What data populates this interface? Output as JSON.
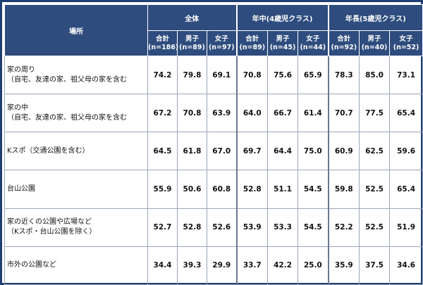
{
  "header": {
    "place_label": "場所",
    "groups": [
      "全体",
      "年中(4歳児クラス)",
      "年長(5歳児クラス)"
    ],
    "subcolumns": [
      {
        "line1": "合計",
        "line2": "(n=186)"
      },
      {
        "line1": "男子",
        "line2": "(n=89)"
      },
      {
        "line1": "女子",
        "line2": "(n=97)"
      },
      {
        "line1": "合計",
        "line2": "(n=89)"
      },
      {
        "line1": "男子",
        "line2": "(n=45)"
      },
      {
        "line1": "女子",
        "line2": "(n=44)"
      },
      {
        "line1": "合計",
        "line2": "(n=92)"
      },
      {
        "line1": "男子",
        "line2": "(n=40)"
      },
      {
        "line1": "女子",
        "line2": "(n=52)"
      }
    ]
  },
  "rows": [
    {
      "label1": "家の周り",
      "label2": "（自宅、友達の家、祖父母の家を含む",
      "values": [
        "74.2",
        "79.8",
        "69.1",
        "70.8",
        "75.6",
        "65.9",
        "78.3",
        "85.0",
        "73.1"
      ]
    },
    {
      "label1": "家の中",
      "label2": "（自宅、友達の家、祖父母の家を含む",
      "values": [
        "67.2",
        "70.8",
        "63.9",
        "64.0",
        "66.7",
        "61.4",
        "70.7",
        "77.5",
        "65.4"
      ]
    },
    {
      "label1": "Kスポ（交通公園を含む）",
      "label2": "",
      "values": [
        "64.5",
        "61.8",
        "67.0",
        "69.7",
        "64.4",
        "75.0",
        "60.9",
        "62.5",
        "59.6"
      ]
    },
    {
      "label1": "台山公園",
      "label2": "",
      "values": [
        "55.9",
        "50.6",
        "60.8",
        "52.8",
        "51.1",
        "54.5",
        "59.8",
        "52.5",
        "65.4"
      ]
    },
    {
      "label1": "家の近くの公園や広場など",
      "label2": "（Kスポ・台山公園を除く）",
      "values": [
        "52.7",
        "52.8",
        "52.6",
        "53.9",
        "53.3",
        "54.5",
        "52.2",
        "52.5",
        "51.9"
      ]
    },
    {
      "label1": "市外の公園など",
      "label2": "",
      "values": [
        "34.4",
        "39.3",
        "29.9",
        "33.7",
        "42.2",
        "25.0",
        "35.9",
        "37.5",
        "34.6"
      ]
    }
  ]
}
